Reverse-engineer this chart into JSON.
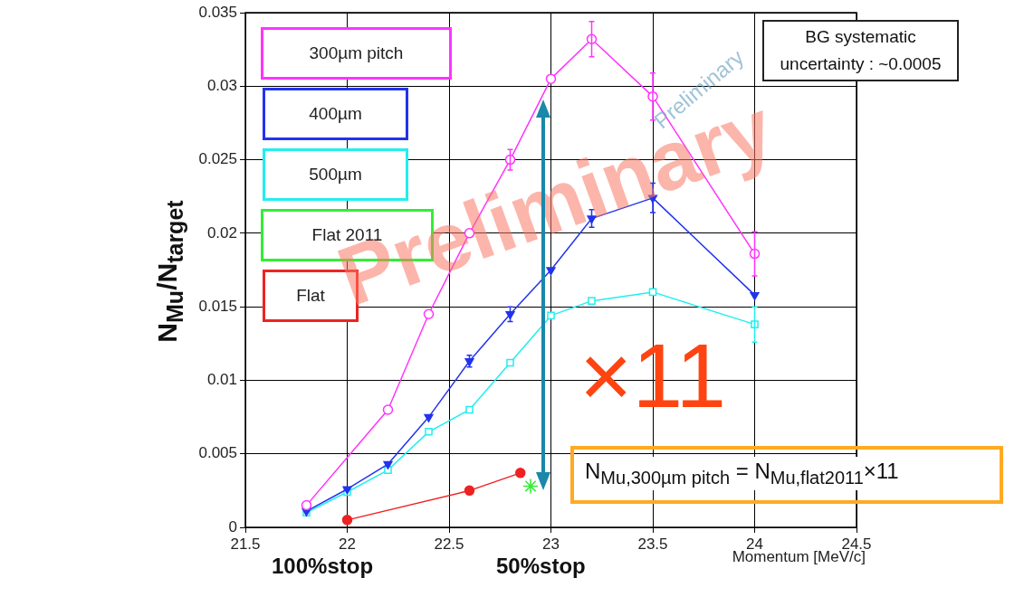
{
  "chart_data": {
    "type": "line",
    "ylabel": "N$_{Mu}$/N$_{target}$",
    "xlabel": "Momentum [MeV/c]",
    "xlim": [
      21.5,
      24.5
    ],
    "xticks": [
      21.5,
      22,
      22.5,
      23,
      23.5,
      24,
      24.5
    ],
    "ylim": [
      0,
      0.035
    ],
    "yticks": [
      0,
      0.005,
      0.01,
      0.015,
      0.02,
      0.025,
      0.03,
      0.035
    ],
    "grid": true,
    "legend": "top left",
    "series": [
      {
        "name": "300µm pitch",
        "color": "#ff33ff",
        "marker": "circle",
        "x": [
          21.8,
          22.2,
          22.4,
          22.6,
          22.8,
          23,
          23.2,
          23.5,
          24
        ],
        "values": [
          0.0015,
          0.008,
          0.0145,
          0.02,
          0.025,
          0.0305,
          0.0332,
          0.0293,
          0.0186
        ],
        "errors": [
          null,
          null,
          null,
          null,
          0.0007,
          null,
          0.0012,
          0.0016,
          0.0015
        ]
      },
      {
        "name": "400µm",
        "color": "#2233ee",
        "marker": "triangle",
        "x": [
          21.8,
          22,
          22.2,
          22.4,
          22.6,
          22.8,
          23,
          23.2,
          23.5,
          24
        ],
        "values": [
          0.0011,
          0.0026,
          0.0043,
          0.0075,
          0.0113,
          0.0145,
          0.0175,
          0.021,
          0.0224,
          0.0158
        ],
        "errors": [
          null,
          null,
          null,
          null,
          0.0004,
          0.0005,
          null,
          0.0006,
          0.001,
          null
        ]
      },
      {
        "name": "500µm",
        "color": "#22eeee",
        "marker": "square",
        "x": [
          21.8,
          22,
          22.2,
          22.4,
          22.6,
          22.8,
          23,
          23.2,
          23.5,
          24
        ],
        "values": [
          0.001,
          0.0024,
          0.0039,
          0.0065,
          0.008,
          0.0112,
          0.0144,
          0.0154,
          0.016,
          0.0138
        ],
        "errors": [
          null,
          null,
          null,
          null,
          null,
          null,
          null,
          null,
          null,
          0.0012
        ]
      },
      {
        "name": "Flat 2011",
        "color": "#33ee33",
        "type": "scatter",
        "marker": "cross",
        "x": [
          22.9
        ],
        "values": [
          0.0028
        ]
      },
      {
        "name": "Flat",
        "color": "#ee2222",
        "marker": "circle",
        "x": [
          22,
          22.6,
          22.85
        ],
        "values": [
          0.0005,
          0.0025,
          0.0037
        ]
      }
    ],
    "annotations": [
      "BG systematic uncertainty : ~0.0005",
      "Preliminary",
      "Preliminary",
      "×11",
      "N$_{Mu,300µm pitch}$ = N$_{Mu,flat2011}$×11",
      "100%stop",
      "50%stop"
    ]
  }
}
